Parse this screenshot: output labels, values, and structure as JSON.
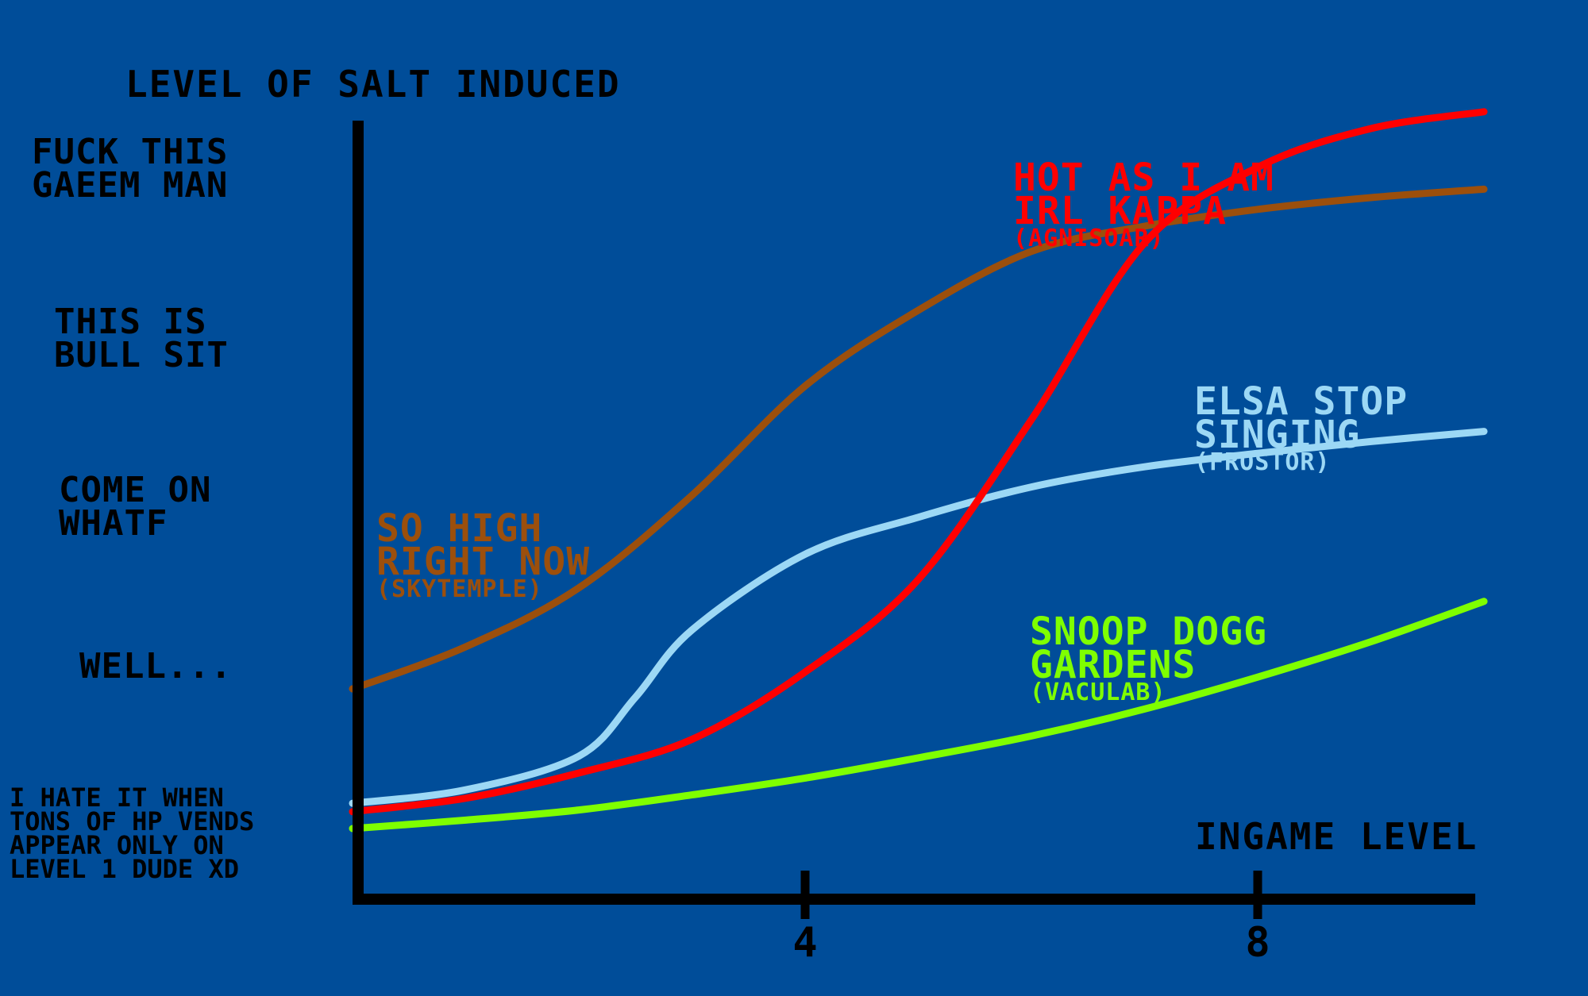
{
  "chart_data": {
    "type": "line",
    "title": "",
    "xlabel": "INGAME LEVEL",
    "ylabel": "LEVEL OF SALT INDUCED",
    "xlim": [
      0,
      10
    ],
    "ylim": [
      0,
      5
    ],
    "x_ticks": [
      {
        "value": 4,
        "label": "4"
      },
      {
        "value": 8,
        "label": "8"
      }
    ],
    "y_tiers": [
      {
        "value": 0.5,
        "lines": [
          "I HATE IT WHEN",
          "TONS OF HP VENDS",
          "APPEAR ONLY ON",
          "LEVEL 1 DUDE XD"
        ]
      },
      {
        "value": 1.5,
        "lines": [
          "WELL..."
        ]
      },
      {
        "value": 2.5,
        "lines": [
          "COME ON",
          "WHATF"
        ]
      },
      {
        "value": 3.5,
        "lines": [
          "THIS IS",
          "BULL SIT"
        ]
      },
      {
        "value": 4.5,
        "lines": [
          "FUCK THIS",
          "GAEEM MAN"
        ]
      }
    ],
    "grid": false,
    "legend": "inline labels",
    "series": [
      {
        "name_lines": [
          "SO HIGH",
          "RIGHT NOW"
        ],
        "sub": "(SKYTEMPLE)",
        "color": "#9c4f0c",
        "x": [
          0,
          1,
          2,
          3,
          4,
          5,
          6,
          7,
          8,
          9,
          10
        ],
        "y": [
          1.25,
          1.5,
          1.85,
          2.4,
          3.05,
          3.5,
          3.85,
          4.0,
          4.1,
          4.17,
          4.22
        ]
      },
      {
        "name_lines": [
          "ELSA STOP",
          "SINGING"
        ],
        "sub": "(FROSTOR)",
        "color": "#9cd8f5",
        "x": [
          0,
          1,
          2,
          2.5,
          3,
          4,
          5,
          6,
          7,
          8,
          9,
          10
        ],
        "y": [
          0.57,
          0.65,
          0.85,
          1.2,
          1.6,
          2.05,
          2.27,
          2.45,
          2.57,
          2.65,
          2.72,
          2.78
        ]
      },
      {
        "name_lines": [
          "HOT AS I AM",
          "IRL KAPPA"
        ],
        "sub": "(AGNISOAR)",
        "color": "#ff0000",
        "x": [
          0,
          1,
          2,
          3,
          4,
          5,
          6,
          7,
          8,
          9,
          10
        ],
        "y": [
          0.52,
          0.6,
          0.75,
          0.95,
          1.35,
          1.9,
          2.85,
          3.9,
          4.35,
          4.58,
          4.68
        ]
      },
      {
        "name_lines": [
          "SNOOP DOGG",
          "GARDENS"
        ],
        "sub": "(VACULAB)",
        "color": "#7fff00",
        "x": [
          0,
          1,
          2,
          3,
          4,
          5,
          6,
          7,
          8,
          9,
          10
        ],
        "y": [
          0.42,
          0.47,
          0.53,
          0.62,
          0.72,
          0.84,
          0.97,
          1.13,
          1.32,
          1.53,
          1.77
        ]
      }
    ]
  }
}
